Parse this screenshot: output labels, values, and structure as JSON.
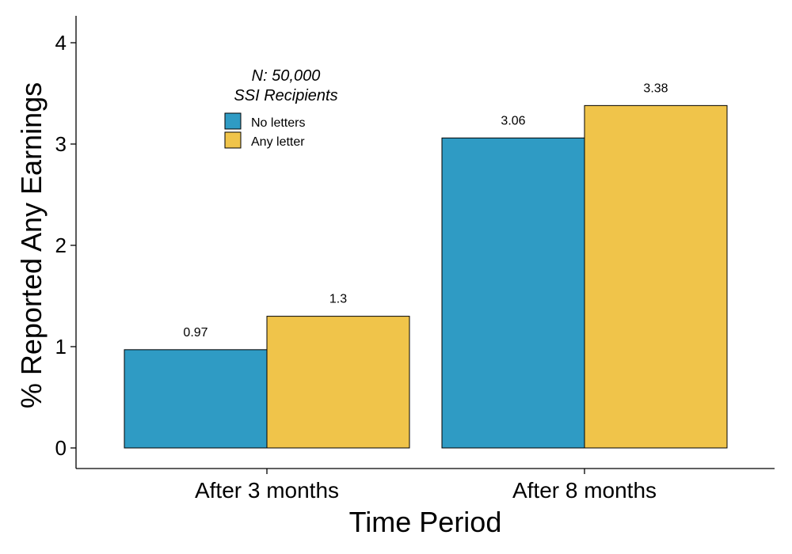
{
  "chart_data": {
    "type": "bar",
    "categories": [
      "After 3 months",
      "After 8 months"
    ],
    "series": [
      {
        "name": "No letters",
        "values": [
          0.97,
          3.06
        ],
        "color": "#2F9BC4"
      },
      {
        "name": "Any letter",
        "values": [
          1.3,
          3.38
        ],
        "color": "#F0C44A"
      }
    ],
    "data_labels": [
      [
        "0.97",
        "3.06"
      ],
      [
        "1.3",
        "3.38"
      ]
    ],
    "xlabel": "Time Period",
    "ylabel": "% Reported Any Earnings",
    "ylim": [
      0,
      4
    ],
    "yticks": [
      0,
      1,
      2,
      3,
      4
    ],
    "grid": false,
    "legend": {
      "title_lines": [
        "N: 50,000",
        "SSI Recipients"
      ],
      "placement": "top-left"
    }
  }
}
